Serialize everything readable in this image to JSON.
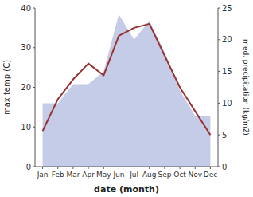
{
  "chart_data": {
    "type": "line",
    "x_label": "date (month)",
    "y_label": "max temp (C)",
    "y2_label": "med. precipitation (kg/m2)",
    "categories": [
      "Jan",
      "Feb",
      "Mar",
      "Apr",
      "May",
      "Jun",
      "Jul",
      "Aug",
      "Sep",
      "Oct",
      "Nov",
      "Dec"
    ],
    "series": [
      {
        "type": "area",
        "color": "#c5cce8",
        "axis": "y2",
        "values": [
          10,
          10,
          13,
          13,
          15,
          24,
          20,
          23,
          18,
          12,
          8,
          8
        ]
      },
      {
        "type": "line",
        "color": "#993333",
        "values": [
          9,
          17,
          22,
          26,
          23,
          33,
          35,
          36,
          28,
          20,
          14,
          8
        ]
      }
    ],
    "ylim": [
      0,
      40
    ],
    "yticks": [
      0,
      10,
      20,
      30,
      40
    ],
    "y2lim": [
      0,
      25
    ],
    "y2ticks": [
      0,
      5,
      10,
      15,
      20,
      25
    ],
    "grid": false
  }
}
